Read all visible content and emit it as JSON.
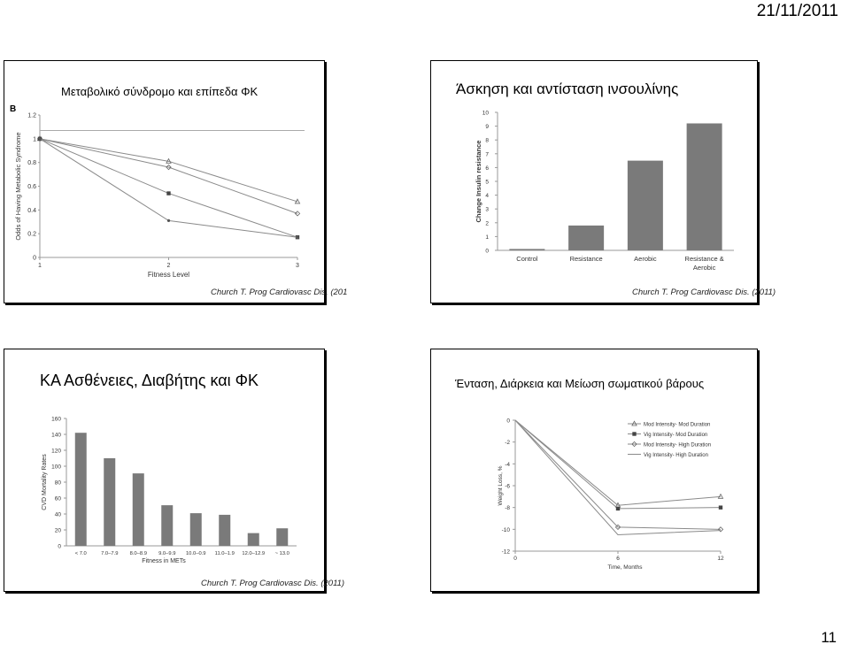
{
  "header_date": "21/11/2011",
  "page_number": "11",
  "slides": {
    "metabolic": {
      "title": "Μεταβολικό σύνδρομο και επίπεδα ΦΚ",
      "caption": "Church T. Prog Cardiovasc Dis. (201",
      "panel_label": "B"
    },
    "insulin": {
      "title": "Άσκηση και αντίσταση ινσουλίνης",
      "caption": "Church T. Prog Cardiovasc Dis. (2011)"
    },
    "cvd": {
      "title": "ΚΑ Ασθένειες, Διαβήτης και ΦΚ",
      "caption": "Church T. Prog Cardiovasc Dis. (2011)"
    },
    "weight": {
      "title": "Ένταση, Διάρκεια και Μείωση σωματικού βάρους"
    }
  },
  "chart_data": [
    {
      "id": "metabolic",
      "type": "line",
      "xlabel": "Fitness Level",
      "ylabel": "Odds of Having Metabolic Syndrome",
      "x": [
        1,
        2,
        3
      ],
      "xticks": [
        "1",
        "2",
        "3"
      ],
      "yticks": [
        "0",
        "0.2",
        "0.4",
        "0.6",
        "0.8",
        "1",
        "1.2"
      ],
      "ylim": [
        0,
        1.2
      ],
      "reference_line": 1.07,
      "series": [
        {
          "values": [
            1.0,
            0.81,
            0.47
          ],
          "marker": "triangle"
        },
        {
          "values": [
            1.0,
            0.76,
            0.37
          ],
          "marker": "diamond"
        },
        {
          "values": [
            1.0,
            0.54,
            0.17
          ],
          "marker": "square"
        },
        {
          "values": [
            1.0,
            0.31,
            0.17
          ],
          "marker": "dot"
        }
      ]
    },
    {
      "id": "insulin",
      "type": "bar",
      "ylabel": "Change Insulin resistance",
      "categories": [
        "Control",
        "Resistance",
        "Aerobic",
        "Resistance & Aerobic"
      ],
      "values": [
        0.1,
        1.8,
        6.5,
        9.2
      ],
      "yticks": [
        "0",
        "1",
        "2",
        "3",
        "4",
        "5",
        "6",
        "7",
        "8",
        "9",
        "10"
      ],
      "ylim": [
        0,
        10
      ]
    },
    {
      "id": "cvd",
      "type": "bar",
      "xlabel": "Fitness in METs",
      "ylabel": "CVD Mortality Rates",
      "categories": [
        "< 7.0",
        "7.0–7.9",
        "8.0–8.9",
        "9.0–9.9",
        "10.0–0.9",
        "11.0–1.9",
        "12.0–12.9",
        "~ 13.0"
      ],
      "values": [
        142,
        110,
        91,
        51,
        41,
        39,
        16,
        22
      ],
      "yticks": [
        "0",
        "20",
        "40",
        "60",
        "80",
        "100",
        "120",
        "140",
        "160"
      ],
      "ylim": [
        0,
        160
      ]
    },
    {
      "id": "weight",
      "type": "line",
      "xlabel": "Time, Months",
      "ylabel": "Weight Loss, %",
      "x": [
        0,
        6,
        12
      ],
      "xticks": [
        "0",
        "6",
        "12"
      ],
      "yticks": [
        "0",
        "-2",
        "-4",
        "-6",
        "-8",
        "-10",
        "-12"
      ],
      "ylim": [
        -12,
        0
      ],
      "legend_position": "top-right",
      "series": [
        {
          "name": "Mod Intensity- Mod Duration",
          "values": [
            0,
            -7.8,
            -7.0
          ],
          "marker": "triangle"
        },
        {
          "name": "Vig Intensity- Mod Duration",
          "values": [
            0,
            -8.1,
            -8.0
          ],
          "marker": "square"
        },
        {
          "name": "Mod Intensity- High Duration",
          "values": [
            0,
            -9.8,
            -10.0
          ],
          "marker": "diamond"
        },
        {
          "name": "Vig Intensity- High Duration",
          "values": [
            0,
            -10.5,
            -10.1
          ],
          "marker": "none"
        }
      ]
    }
  ]
}
